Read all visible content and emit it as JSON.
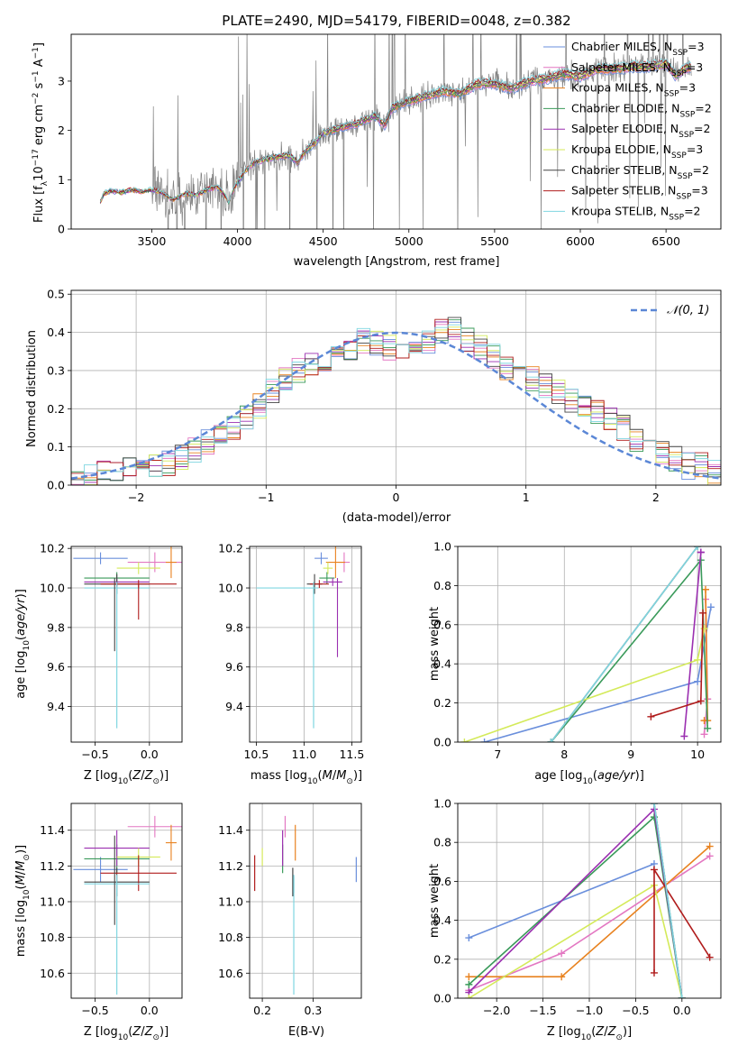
{
  "colors": {
    "Chabrier MILES": "#6a8fdc",
    "Salpeter MILES": "#e377c2",
    "Kroupa MILES": "#e8821f",
    "Chabrier ELODIE": "#3a9a5a",
    "Salpeter ELODIE": "#9b2fb0",
    "Kroupa ELODIE": "#d4ea5a",
    "Chabrier STELIB": "#444444",
    "Salpeter STELIB": "#b01c1c",
    "Kroupa STELIB": "#7fd6e0",
    "data": "#808080",
    "grid": "#b0b0b0"
  },
  "chart_data": [
    {
      "type": "line",
      "title": "PLATE=2490, MJD=54179, FIBERID=0048, z=0.382",
      "xlabel": "wavelength [Angstrom, rest frame]",
      "ylabel": "Flux [f_λ 10^-17 erg cm^-2 s^-1 A^-1]",
      "xlim": [
        3030,
        6820
      ],
      "ylim": [
        0,
        3.95
      ],
      "xticks": [
        3500,
        4000,
        4500,
        5000,
        5500,
        6000,
        6500
      ],
      "yticks": [
        0,
        1,
        2,
        3
      ],
      "model_trend": {
        "x": [
          3200,
          3220,
          3260,
          3320,
          3380,
          3440,
          3500,
          3560,
          3620,
          3660,
          3700,
          3760,
          3820,
          3880,
          3920,
          3950,
          3970,
          4000,
          4050,
          4100,
          4200,
          4300,
          4350,
          4400,
          4450,
          4500,
          4600,
          4700,
          4800,
          4860,
          4900,
          5000,
          5100,
          5200,
          5300,
          5400,
          5500,
          5600,
          5700,
          5800,
          5900,
          6000,
          6100,
          6200,
          6300,
          6400,
          6500,
          6560,
          6600,
          6650
        ],
        "y": [
          0.55,
          0.72,
          0.78,
          0.74,
          0.8,
          0.76,
          0.8,
          0.74,
          0.6,
          0.65,
          0.72,
          0.68,
          0.8,
          0.86,
          0.72,
          0.55,
          0.75,
          0.95,
          1.2,
          1.35,
          1.45,
          1.5,
          1.35,
          1.6,
          1.75,
          1.95,
          2.05,
          2.15,
          2.3,
          2.1,
          2.45,
          2.6,
          2.7,
          2.8,
          2.75,
          2.95,
          2.95,
          2.85,
          3.0,
          3.05,
          3.15,
          3.1,
          3.25,
          3.25,
          3.3,
          3.3,
          3.35,
          3.1,
          3.25,
          3.3
        ]
      },
      "legend": [
        {
          "label": "Chabrier MILES",
          "nssp": "3"
        },
        {
          "label": "Salpeter MILES",
          "nssp": "3"
        },
        {
          "label": "Kroupa MILES",
          "nssp": "3"
        },
        {
          "label": "Chabrier ELODIE",
          "nssp": "2"
        },
        {
          "label": "Salpeter ELODIE",
          "nssp": "2"
        },
        {
          "label": "Kroupa ELODIE",
          "nssp": "3"
        },
        {
          "label": "Chabrier STELIB",
          "nssp": "2"
        },
        {
          "label": "Salpeter STELIB",
          "nssp": "3"
        },
        {
          "label": "Kroupa STELIB",
          "nssp": "2"
        }
      ],
      "legend_placement": "upper right",
      "grid": false
    },
    {
      "type": "histogram",
      "xlabel": "(data-model)/error",
      "ylabel": "Normed distribution",
      "xlim": [
        -2.5,
        2.5
      ],
      "ylim": [
        0,
        0.51
      ],
      "xticks": [
        -2,
        -1,
        0,
        1,
        2
      ],
      "yticks": [
        0.0,
        0.1,
        0.2,
        0.3,
        0.4,
        0.5
      ],
      "bins": {
        "start": -2.5,
        "width": 0.1,
        "count": 50
      },
      "envelope": [
        0.01,
        0.02,
        0.03,
        0.03,
        0.04,
        0.05,
        0.05,
        0.06,
        0.07,
        0.09,
        0.11,
        0.13,
        0.15,
        0.18,
        0.21,
        0.25,
        0.28,
        0.3,
        0.31,
        0.33,
        0.34,
        0.36,
        0.38,
        0.37,
        0.36,
        0.36,
        0.36,
        0.38,
        0.4,
        0.41,
        0.38,
        0.36,
        0.34,
        0.31,
        0.3,
        0.28,
        0.26,
        0.24,
        0.22,
        0.21,
        0.19,
        0.17,
        0.15,
        0.12,
        0.1,
        0.08,
        0.07,
        0.05,
        0.05,
        0.03
      ],
      "gaussian_label": "𝒩(0, 1)",
      "legend_placement": "upper right",
      "grid": true
    },
    {
      "type": "scatter",
      "xlabel": "Z [log10(Z/Z⊙)]",
      "ylabel": "age  [log10(age/yr)]",
      "xlim": [
        -0.72,
        0.3
      ],
      "ylim": [
        9.22,
        10.21
      ],
      "xticks": [
        -0.5,
        0.0
      ],
      "yticks": [
        9.4,
        9.6,
        9.8,
        10.0,
        10.2
      ],
      "grid": true
    },
    {
      "type": "scatter",
      "xlabel": "mass [log10(M/M⊙)]",
      "ylabel": "",
      "xlim": [
        10.43,
        11.6
      ],
      "ylim": [
        9.22,
        10.21
      ],
      "xticks": [
        10.5,
        11.0,
        11.5
      ],
      "yticks": [
        9.4,
        9.6,
        9.8,
        10.0,
        10.2
      ],
      "grid": true
    },
    {
      "type": "line",
      "xlabel": "age  [log10(age/yr)]",
      "ylabel": "mass weight",
      "xlim": [
        6.4,
        10.35
      ],
      "ylim": [
        0,
        1.0
      ],
      "xticks": [
        7,
        8,
        9,
        10
      ],
      "yticks": [
        0.0,
        0.2,
        0.4,
        0.6,
        0.8,
        1.0
      ],
      "grid": true
    },
    {
      "type": "scatter",
      "xlabel": "Z [log10(Z/Z⊙)]",
      "ylabel": "mass [log10(M/M⊙)]",
      "xlim": [
        -0.72,
        0.3
      ],
      "ylim": [
        10.46,
        11.55
      ],
      "xticks": [
        -0.5,
        0.0
      ],
      "yticks": [
        10.6,
        10.8,
        11.0,
        11.2,
        11.4
      ],
      "grid": true
    },
    {
      "type": "scatter",
      "xlabel": "E(B-V)",
      "ylabel": "",
      "xlim": [
        0.175,
        0.395
      ],
      "ylim": [
        10.46,
        11.55
      ],
      "xticks": [
        0.2,
        0.3
      ],
      "yticks": [
        10.6,
        10.8,
        11.0,
        11.2,
        11.4
      ],
      "grid": true
    },
    {
      "type": "line",
      "xlabel": "Z [log10(Z/Z⊙)]",
      "ylabel": "mass weight",
      "xlim": [
        -2.42,
        0.42
      ],
      "ylim": [
        0,
        1.0
      ],
      "xticks": [
        -2.0,
        -1.5,
        -1.0,
        -0.5,
        0.0
      ],
      "yticks": [
        0.0,
        0.2,
        0.4,
        0.6,
        0.8,
        1.0
      ],
      "grid": true
    }
  ],
  "fits": [
    {
      "name": "Chabrier MILES",
      "Z": -0.45,
      "Zerr": 0.25,
      "age": 10.15,
      "ageErr": 0.03,
      "mass": 11.18,
      "massErr": 0.07,
      "ebv": 0.385,
      "age_w": [
        [
          6.8,
          0.0
        ],
        [
          10.0,
          0.31
        ],
        [
          10.2,
          0.69
        ]
      ],
      "Z_w": [
        [
          -2.3,
          0.31
        ],
        [
          -0.3,
          0.69
        ]
      ]
    },
    {
      "name": "Salpeter MILES",
      "Z": 0.05,
      "Zerr": 0.25,
      "age": 10.13,
      "ageErr": 0.05,
      "mass": 11.42,
      "massErr": 0.06,
      "ebv": 0.245,
      "age_w": [
        [
          10.1,
          0.04
        ],
        [
          10.15,
          0.22
        ],
        [
          10.12,
          0.73
        ]
      ],
      "Z_w": [
        [
          -2.3,
          0.04
        ],
        [
          -1.3,
          0.23
        ],
        [
          0.3,
          0.73
        ]
      ]
    },
    {
      "name": "Kroupa MILES",
      "Z": 0.2,
      "Zerr": 0.05,
      "age": 10.13,
      "ageErr": 0.08,
      "mass": 11.33,
      "massErr": 0.1,
      "ebv": 0.265,
      "age_w": [
        [
          10.1,
          0.11
        ],
        [
          10.15,
          0.11
        ],
        [
          10.12,
          0.78
        ]
      ],
      "Z_w": [
        [
          -2.3,
          0.11
        ],
        [
          -1.3,
          0.11
        ],
        [
          0.3,
          0.78
        ]
      ]
    },
    {
      "name": "Chabrier ELODIE",
      "Z": -0.3,
      "Zerr": 0.3,
      "age": 10.05,
      "ageErr": 0.03,
      "mass": 11.24,
      "massErr": 0.08,
      "ebv": 0.24,
      "age_w": [
        [
          7.8,
          0.0
        ],
        [
          10.05,
          0.93
        ],
        [
          10.15,
          0.07
        ]
      ],
      "Z_w": [
        [
          -2.3,
          0.07
        ],
        [
          -0.3,
          0.93
        ],
        [
          0.0,
          0.0
        ]
      ]
    },
    {
      "name": "Salpeter ELODIE",
      "Z": -0.3,
      "Zerr": 0.3,
      "age": 10.03,
      "ageErr": 0.02,
      "mass": 11.3,
      "massErr": 0.1,
      "ebv": 0.24,
      "age_w": [
        [
          9.8,
          0.03
        ],
        [
          10.05,
          0.97
        ],
        [
          10.05,
          0.97
        ]
      ],
      "Z_w": [
        [
          -2.3,
          0.03
        ],
        [
          -0.3,
          0.97
        ],
        [
          0.0,
          0.0
        ]
      ]
    },
    {
      "name": "Kroupa ELODIE",
      "Z": -0.1,
      "Zerr": 0.2,
      "age": 10.1,
      "ageErr": 0.03,
      "mass": 11.25,
      "massErr": 0.05,
      "ebv": 0.2,
      "age_w": [
        [
          6.5,
          0.0
        ],
        [
          10.0,
          0.42
        ],
        [
          10.1,
          0.58
        ]
      ],
      "Z_w": [
        [
          -2.3,
          0.0
        ],
        [
          -0.3,
          0.58
        ],
        [
          0.0,
          0.0
        ]
      ]
    },
    {
      "name": "Chabrier STELIB",
      "Z": -0.3,
      "Zerr": 0.3,
      "age": 10.02,
      "ageErr": 0.05,
      "mass": 11.11,
      "massErr": 0.08,
      "ebv": 0.26,
      "age_w": [
        [
          7.8,
          0.0
        ],
        [
          10.0,
          1.0
        ]
      ],
      "Z_w": [
        [
          -0.3,
          1.0
        ],
        [
          0.0,
          0.0
        ]
      ]
    },
    {
      "name": "Salpeter STELIB",
      "Z": -0.1,
      "Zerr": 0.35,
      "age": 10.02,
      "ageErr": 0.02,
      "mass": 11.16,
      "massErr": 0.1,
      "ebv": 0.185,
      "age_w": [
        [
          9.3,
          0.13
        ],
        [
          10.05,
          0.21
        ],
        [
          10.08,
          0.66
        ]
      ],
      "Z_w": [
        [
          -0.3,
          0.13
        ],
        [
          -0.3,
          0.66
        ],
        [
          0.3,
          0.21
        ]
      ]
    },
    {
      "name": "Kroupa STELIB",
      "Z": -0.3,
      "Zerr": 0.3,
      "age": 10.0,
      "ageErr": 0.03,
      "mass": 11.1,
      "massErr": 0.05,
      "ebv": 0.262,
      "age_w": [
        [
          7.8,
          0.0
        ],
        [
          10.0,
          1.0
        ]
      ],
      "Z_w": [
        [
          -0.3,
          1.0
        ],
        [
          0.0,
          0.0
        ]
      ]
    }
  ]
}
